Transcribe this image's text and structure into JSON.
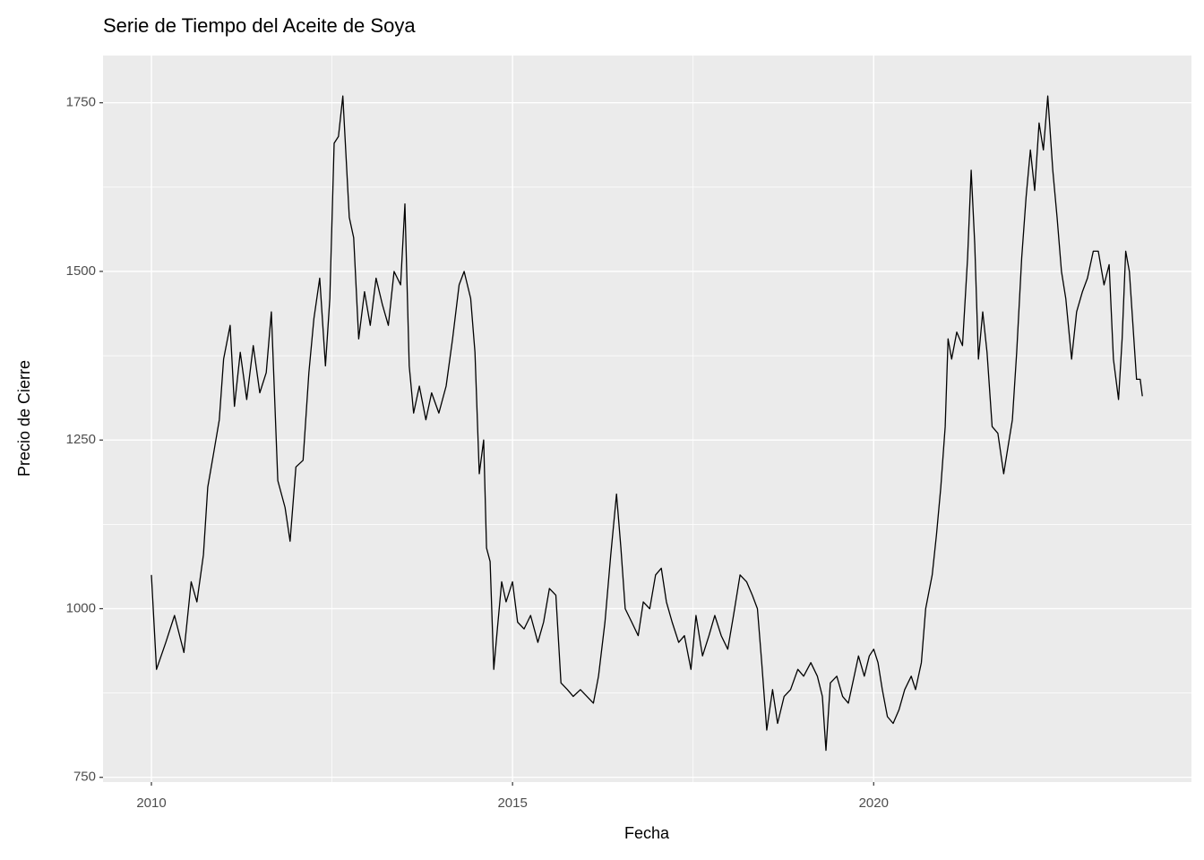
{
  "chart_data": {
    "type": "line",
    "title": "Serie de Tiempo del Aceite de Soya",
    "x_label": "Fecha",
    "y_label": "Precio de Cierre",
    "color": "#000000",
    "grid": true,
    "xlim": [
      2009.33,
      2024.4
    ],
    "ylim": [
      743,
      1820
    ],
    "xticks": [
      2010,
      2015,
      2020
    ],
    "yticks": [
      750,
      1000,
      1250,
      1500,
      1750
    ],
    "x": [
      2010.0,
      2010.07,
      2010.2,
      2010.32,
      2010.45,
      2010.55,
      2010.63,
      2010.72,
      2010.78,
      2010.86,
      2010.94,
      2011.0,
      2011.09,
      2011.15,
      2011.23,
      2011.32,
      2011.41,
      2011.5,
      2011.59,
      2011.66,
      2011.75,
      2011.85,
      2011.92,
      2012.0,
      2012.1,
      2012.18,
      2012.25,
      2012.33,
      2012.41,
      2012.47,
      2012.53,
      2012.59,
      2012.65,
      2012.74,
      2012.8,
      2012.87,
      2012.95,
      2013.03,
      2013.11,
      2013.2,
      2013.28,
      2013.36,
      2013.45,
      2013.51,
      2013.57,
      2013.63,
      2013.71,
      2013.8,
      2013.88,
      2013.98,
      2014.08,
      2014.17,
      2014.26,
      2014.33,
      2014.42,
      2014.48,
      2014.54,
      2014.6,
      2014.64,
      2014.69,
      2014.74,
      2014.79,
      2014.85,
      2014.91,
      2015.0,
      2015.07,
      2015.16,
      2015.25,
      2015.35,
      2015.43,
      2015.51,
      2015.6,
      2015.67,
      2015.76,
      2015.84,
      2015.94,
      2016.03,
      2016.12,
      2016.19,
      2016.28,
      2016.36,
      2016.44,
      2016.5,
      2016.56,
      2016.65,
      2016.74,
      2016.81,
      2016.9,
      2016.98,
      2017.06,
      2017.13,
      2017.21,
      2017.3,
      2017.38,
      2017.47,
      2017.54,
      2017.63,
      2017.72,
      2017.8,
      2017.89,
      2017.98,
      2018.06,
      2018.15,
      2018.24,
      2018.32,
      2018.39,
      2018.45,
      2018.52,
      2018.6,
      2018.67,
      2018.76,
      2018.85,
      2018.95,
      2019.03,
      2019.13,
      2019.22,
      2019.29,
      2019.34,
      2019.4,
      2019.49,
      2019.57,
      2019.65,
      2019.73,
      2019.79,
      2019.87,
      2019.94,
      2020.0,
      2020.06,
      2020.12,
      2020.19,
      2020.27,
      2020.35,
      2020.43,
      2020.52,
      2020.58,
      2020.66,
      2020.72,
      2020.81,
      2020.87,
      2020.93,
      2020.99,
      2021.03,
      2021.08,
      2021.15,
      2021.23,
      2021.3,
      2021.35,
      2021.4,
      2021.45,
      2021.51,
      2021.57,
      2021.64,
      2021.72,
      2021.8,
      2021.86,
      2021.92,
      2021.98,
      2022.05,
      2022.11,
      2022.17,
      2022.23,
      2022.29,
      2022.35,
      2022.41,
      2022.48,
      2022.54,
      2022.6,
      2022.66,
      2022.74,
      2022.81,
      2022.89,
      2022.96,
      2023.04,
      2023.11,
      2023.19,
      2023.26,
      2023.32,
      2023.39,
      2023.44,
      2023.49,
      2023.54,
      2023.59,
      2023.64,
      2023.69,
      2023.72
    ],
    "values": [
      1050,
      910,
      950,
      990,
      935,
      1040,
      1010,
      1080,
      1180,
      1230,
      1280,
      1370,
      1420,
      1300,
      1380,
      1310,
      1390,
      1320,
      1350,
      1440,
      1190,
      1150,
      1100,
      1210,
      1220,
      1350,
      1430,
      1490,
      1360,
      1460,
      1690,
      1700,
      1760,
      1580,
      1550,
      1400,
      1470,
      1420,
      1490,
      1450,
      1420,
      1500,
      1480,
      1600,
      1360,
      1290,
      1330,
      1280,
      1320,
      1290,
      1330,
      1400,
      1480,
      1500,
      1460,
      1380,
      1200,
      1250,
      1090,
      1070,
      910,
      970,
      1040,
      1010,
      1040,
      980,
      970,
      990,
      950,
      980,
      1030,
      1020,
      890,
      880,
      870,
      880,
      870,
      860,
      900,
      980,
      1080,
      1170,
      1090,
      1000,
      980,
      960,
      1010,
      1000,
      1050,
      1060,
      1010,
      980,
      950,
      960,
      910,
      990,
      930,
      960,
      990,
      960,
      940,
      990,
      1050,
      1040,
      1020,
      1000,
      920,
      820,
      880,
      830,
      870,
      880,
      910,
      900,
      920,
      900,
      870,
      790,
      890,
      900,
      870,
      860,
      900,
      930,
      900,
      930,
      940,
      920,
      880,
      840,
      830,
      850,
      880,
      900,
      880,
      920,
      1000,
      1050,
      1110,
      1180,
      1270,
      1400,
      1370,
      1410,
      1390,
      1520,
      1650,
      1540,
      1370,
      1440,
      1380,
      1270,
      1260,
      1200,
      1240,
      1280,
      1380,
      1520,
      1610,
      1680,
      1620,
      1720,
      1680,
      1760,
      1650,
      1580,
      1500,
      1460,
      1370,
      1440,
      1470,
      1490,
      1530,
      1530,
      1480,
      1510,
      1370,
      1310,
      1400,
      1530,
      1500,
      1420,
      1340,
      1340,
      1315
    ]
  }
}
